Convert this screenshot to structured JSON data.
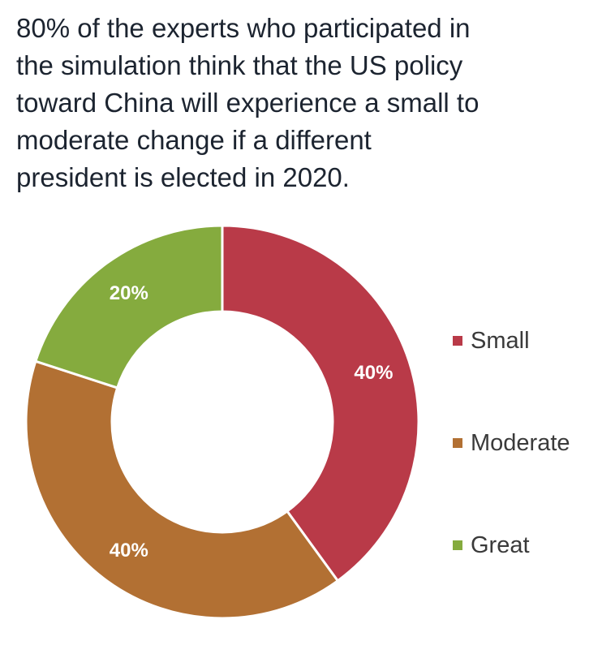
{
  "title_lines": [
    "80% of the experts who participated in",
    "the simulation think that the US policy",
    "toward China will experience a small to",
    "moderate change if a different",
    "president is elected in 2020."
  ],
  "chart_data": {
    "type": "pie",
    "donut": true,
    "title": "80% of the experts who participated in the simulation think that the US policy toward China will experience a small to moderate change if a different president is elected in 2020.",
    "categories": [
      "Small",
      "Moderate",
      "Great"
    ],
    "values": [
      40,
      40,
      20
    ],
    "value_labels": [
      "40%",
      "40%",
      "20%"
    ],
    "colors": [
      "#b93a48",
      "#b27033",
      "#85ab3e"
    ],
    "legend_placement": "right"
  }
}
